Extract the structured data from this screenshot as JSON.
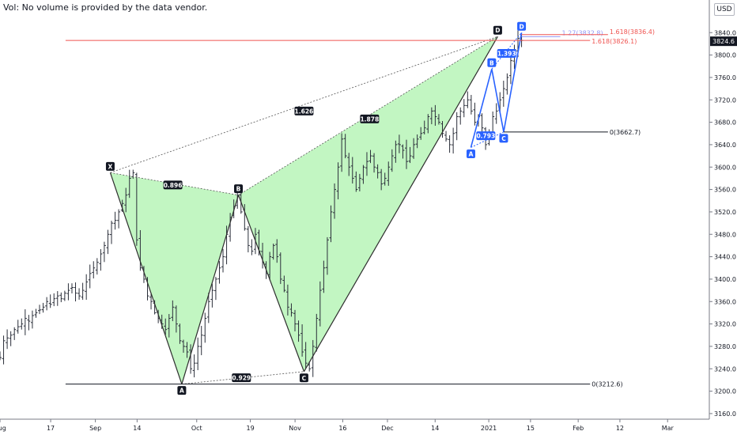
{
  "header": {
    "volume_note": "Vol: No volume is provided by the data vendor.",
    "currency": "USD"
  },
  "colors": {
    "pattern_fill": "#b7f5b7",
    "pattern_line": "#2e2e2e",
    "abcd_line": "#2962ff",
    "target_line": "#ef5350",
    "price_badge": "#131722"
  },
  "chart_data": {
    "type": "bar",
    "ylim": [
      3150,
      3870
    ],
    "y_ticks": [
      "3160.0",
      "3200.0",
      "3240.0",
      "3280.0",
      "3320.0",
      "3360.0",
      "3400.0",
      "3440.0",
      "3480.0",
      "3520.0",
      "3560.0",
      "3600.0",
      "3640.0",
      "3680.0",
      "3720.0",
      "3760.0",
      "3800.0",
      "3840.0"
    ],
    "y_tick_values": [
      3160,
      3200,
      3240,
      3280,
      3320,
      3360,
      3400,
      3440,
      3480,
      3520,
      3560,
      3600,
      3640,
      3680,
      3720,
      3760,
      3800,
      3840
    ],
    "x_range": [
      0,
      238
    ],
    "x_ticks": [
      {
        "label": "Aug",
        "x": 0
      },
      {
        "label": "17",
        "x": 17
      },
      {
        "label": "Sep",
        "x": 32
      },
      {
        "label": "14",
        "x": 46
      },
      {
        "label": "Oct",
        "x": 66
      },
      {
        "label": "19",
        "x": 84
      },
      {
        "label": "Nov",
        "x": 99
      },
      {
        "label": "16",
        "x": 115
      },
      {
        "label": "Dec",
        "x": 130
      },
      {
        "label": "14",
        "x": 146
      },
      {
        "label": "2021",
        "x": 164
      },
      {
        "label": "15",
        "x": 178
      },
      {
        "label": "Feb",
        "x": 194
      },
      {
        "label": "12",
        "x": 208
      },
      {
        "label": "Mar",
        "x": 224
      }
    ],
    "last_price": "3824.6",
    "last_price_value": 3824.6,
    "candles_series": [
      3260,
      3290,
      3295,
      3300,
      3310,
      3315,
      3320,
      3330,
      3325,
      3335,
      3340,
      3345,
      3350,
      3360,
      3355,
      3365,
      3370,
      3365,
      3375,
      3380,
      3385,
      3375,
      3370,
      3380,
      3395,
      3410,
      3420,
      3430,
      3445,
      3460,
      3480,
      3500,
      3505,
      3520,
      3535,
      3550,
      3580,
      3590,
      3470,
      3420,
      3400,
      3370,
      3360,
      3340,
      3330,
      3320,
      3310,
      3330,
      3350,
      3320,
      3290,
      3280,
      3270,
      3240,
      3250,
      3280,
      3300,
      3330,
      3360,
      3380,
      3400,
      3420,
      3440,
      3480,
      3510,
      3530,
      3550,
      3520,
      3490,
      3460,
      3450,
      3480,
      3450,
      3430,
      3410,
      3440,
      3460,
      3440,
      3400,
      3380,
      3350,
      3340,
      3320,
      3300,
      3270,
      3250,
      3240,
      3280,
      3330,
      3380,
      3420,
      3470,
      3520,
      3560,
      3600,
      3650,
      3620,
      3600,
      3580,
      3560,
      3580,
      3600,
      3610,
      3620,
      3600,
      3590,
      3570,
      3580,
      3600,
      3620,
      3640,
      3640,
      3630,
      3610,
      3620,
      3640,
      3650,
      3660,
      3670,
      3690,
      3700,
      3690,
      3680,
      3660,
      3650,
      3640,
      3660,
      3690,
      3700,
      3710,
      3720,
      3700,
      3680,
      3690,
      3670,
      3640,
      3660,
      3690,
      3700,
      3720,
      3740,
      3760,
      3790,
      3810,
      3830,
      3826
    ],
    "xabcd_pattern": {
      "points": [
        {
          "label": "X",
          "x": 37,
          "y": 3590
        },
        {
          "label": "A",
          "x": 61,
          "y": 3212.6
        },
        {
          "label": "B",
          "x": 80,
          "y": 3550
        },
        {
          "label": "C",
          "x": 102,
          "y": 3235
        },
        {
          "label": "D",
          "x": 167,
          "y": 3833
        }
      ],
      "ratios": [
        {
          "label": "0.896",
          "x": 58,
          "y": 3568
        },
        {
          "label": "0.929",
          "x": 81,
          "y": 3224
        },
        {
          "label": "1.626",
          "x": 102,
          "y": 3700
        },
        {
          "label": "1.878",
          "x": 124,
          "y": 3686
        }
      ]
    },
    "abcd_pattern": {
      "points": [
        {
          "label": "A",
          "x": 158,
          "y": 3635
        },
        {
          "label": "B",
          "x": 165,
          "y": 3775
        },
        {
          "label": "C",
          "x": 169,
          "y": 3662.7
        },
        {
          "label": "D",
          "x": 175,
          "y": 3840
        }
      ],
      "ratios": [
        {
          "label": "0.793",
          "x": 163,
          "y": 3656
        },
        {
          "label": "1.393",
          "x": 170,
          "y": 3803
        }
      ]
    },
    "levels": [
      {
        "label": "0(3212.6)",
        "value": 3212.6,
        "x_start": 22,
        "x_end": 198,
        "color": "#131722"
      },
      {
        "label": "0(3662.7)",
        "value": 3662.7,
        "x_start": 169,
        "x_end": 204,
        "color": "#131722"
      },
      {
        "label": "1.618(3826.1)",
        "value": 3826.1,
        "x_start": 22,
        "x_end": 198,
        "color": "#ef5350"
      },
      {
        "label": "1.27(3832.8)",
        "value": 3832.8,
        "x_start": 175,
        "x_end": 188,
        "color": "#9598f5"
      },
      {
        "label": "1.618(3836.4)",
        "value": 3836.4,
        "x_start": 175,
        "x_end": 204,
        "color": "#ef5350"
      }
    ]
  }
}
